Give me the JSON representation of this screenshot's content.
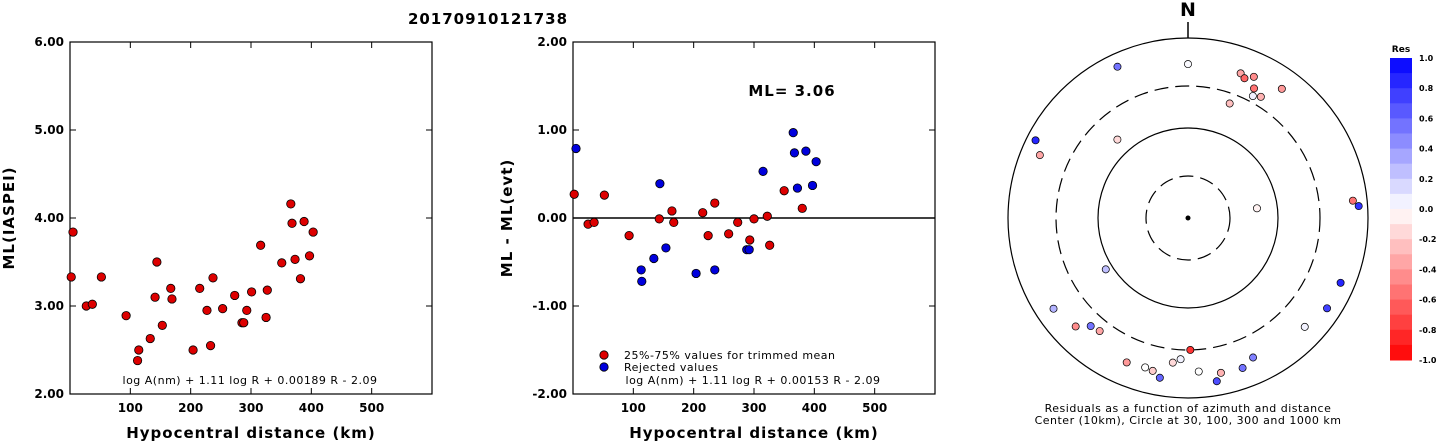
{
  "title": "20170910121738",
  "chart_data": [
    {
      "type": "scatter",
      "ylabel": "ML(IASPEI)",
      "xlabel": "Hypocentral distance (km)",
      "xlim": [
        0,
        600
      ],
      "ylim": [
        2.0,
        6.0
      ],
      "xticks": [
        "100",
        "200",
        "300",
        "400",
        "500"
      ],
      "yticks": [
        "2.00",
        "3.00",
        "4.00",
        "5.00",
        "6.00"
      ],
      "formula": "log A(nm) + 1.11 log R + 0.00189 R - 2.09",
      "marker_color": "#dd0000",
      "points": [
        [
          2,
          3.33
        ],
        [
          5,
          3.84
        ],
        [
          27,
          3.0
        ],
        [
          37,
          3.02
        ],
        [
          52,
          3.33
        ],
        [
          93,
          2.89
        ],
        [
          112,
          2.38
        ],
        [
          114,
          2.5
        ],
        [
          133,
          2.63
        ],
        [
          141,
          3.1
        ],
        [
          144,
          3.5
        ],
        [
          153,
          2.78
        ],
        [
          167,
          3.2
        ],
        [
          169,
          3.08
        ],
        [
          204,
          2.5
        ],
        [
          215,
          3.2
        ],
        [
          227,
          2.95
        ],
        [
          233,
          2.55
        ],
        [
          237,
          3.32
        ],
        [
          253,
          2.97
        ],
        [
          273,
          3.12
        ],
        [
          285,
          2.81
        ],
        [
          288,
          2.81
        ],
        [
          293,
          2.95
        ],
        [
          301,
          3.16
        ],
        [
          316,
          3.69
        ],
        [
          325,
          2.87
        ],
        [
          327,
          3.18
        ],
        [
          351,
          3.49
        ],
        [
          366,
          4.16
        ],
        [
          368,
          3.94
        ],
        [
          373,
          3.53
        ],
        [
          382,
          3.31
        ],
        [
          388,
          3.96
        ],
        [
          397,
          3.57
        ],
        [
          403,
          3.84
        ]
      ]
    },
    {
      "type": "scatter",
      "ylabel": "ML - ML(evt)",
      "xlabel": "Hypocentral distance (km)",
      "xlim": [
        0,
        600
      ],
      "ylim": [
        -2.0,
        2.0
      ],
      "xticks": [
        "100",
        "200",
        "300",
        "400",
        "500"
      ],
      "yticks": [
        "-2.00",
        "-1.00",
        "0.00",
        "1.00",
        "2.00"
      ],
      "annotation": "ML= 3.06",
      "formula": "log A(nm) + 1.11 log R + 0.00153 R - 2.09",
      "series": [
        {
          "name": "25%-75% values for trimmed mean",
          "color": "#dd0000",
          "points": [
            [
              2,
              0.27
            ],
            [
              25,
              -0.07
            ],
            [
              35,
              -0.05
            ],
            [
              52,
              0.26
            ],
            [
              93,
              -0.2
            ],
            [
              143,
              -0.01
            ],
            [
              164,
              0.08
            ],
            [
              167,
              -0.05
            ],
            [
              215,
              0.06
            ],
            [
              224,
              -0.2
            ],
            [
              235,
              0.17
            ],
            [
              258,
              -0.18
            ],
            [
              273,
              -0.05
            ],
            [
              293,
              -0.25
            ],
            [
              300,
              -0.01
            ],
            [
              322,
              0.02
            ],
            [
              326,
              -0.31
            ],
            [
              350,
              0.31
            ],
            [
              380,
              0.11
            ]
          ]
        },
        {
          "name": "Rejected values",
          "color": "#0000dd",
          "points": [
            [
              5,
              0.79
            ],
            [
              113,
              -0.59
            ],
            [
              114,
              -0.72
            ],
            [
              134,
              -0.46
            ],
            [
              144,
              0.39
            ],
            [
              154,
              -0.34
            ],
            [
              204,
              -0.63
            ],
            [
              235,
              -0.59
            ],
            [
              288,
              -0.36
            ],
            [
              292,
              -0.36
            ],
            [
              315,
              0.53
            ],
            [
              365,
              0.97
            ],
            [
              367,
              0.74
            ],
            [
              372,
              0.34
            ],
            [
              386,
              0.76
            ],
            [
              397,
              0.37
            ],
            [
              403,
              0.64
            ]
          ]
        }
      ]
    },
    {
      "type": "scatter",
      "subtype": "polar",
      "north_label": "N",
      "caption_line1": "Residuals as a function of azimuth and distance",
      "caption_line2": "Center (10km), Circle at 30, 100, 300 and 1000 km",
      "circles": [
        30,
        100,
        300,
        1000
      ],
      "colorbar": {
        "title": "Res",
        "ticks": [
          "1.0",
          "0.8",
          "0.6",
          "0.4",
          "0.2",
          "0.0",
          "-0.2",
          "-0.4",
          "-0.6",
          "-0.8",
          "-1.0"
        ],
        "range": [
          -1.0,
          1.0
        ]
      },
      "points": [
        {
          "azimuth": 0,
          "distance_km": 520,
          "residual": 0.02
        },
        {
          "azimuth": 20,
          "distance_km": 520,
          "residual": -0.35
        },
        {
          "azimuth": 22,
          "distance_km": 480,
          "residual": -0.6
        },
        {
          "azimuth": 25,
          "distance_km": 545,
          "residual": -0.45
        },
        {
          "azimuth": 27,
          "distance_km": 420,
          "residual": -0.55
        },
        {
          "azimuth": 28,
          "distance_km": 350,
          "residual": 0.05
        },
        {
          "azimuth": 31,
          "distance_km": 380,
          "residual": -0.3
        },
        {
          "azimuth": 36,
          "distance_km": 600,
          "residual": -0.4
        },
        {
          "azimuth": 20,
          "distance_km": 230,
          "residual": -0.25
        },
        {
          "azimuth": 82,
          "distance_km": 60,
          "residual": -0.05
        },
        {
          "azimuth": 84,
          "distance_km": 700,
          "residual": -0.55
        },
        {
          "azimuth": 86,
          "distance_km": 800,
          "residual": 0.8
        },
        {
          "azimuth": 113,
          "distance_km": 700,
          "residual": 0.85
        },
        {
          "azimuth": 123,
          "distance_km": 700,
          "residual": 0.75
        },
        {
          "azimuth": 133,
          "distance_km": 600,
          "residual": 0.05
        },
        {
          "azimuth": 155,
          "distance_km": 520,
          "residual": 0.5
        },
        {
          "azimuth": 160,
          "distance_km": 600,
          "residual": 0.55
        },
        {
          "azimuth": 168,
          "distance_km": 580,
          "residual": -0.3
        },
        {
          "azimuth": 170,
          "distance_km": 700,
          "residual": 0.7
        },
        {
          "azimuth": 176,
          "distance_km": 520,
          "residual": 0.0
        },
        {
          "azimuth": 179,
          "distance_km": 300,
          "residual": -0.8
        },
        {
          "azimuth": 183,
          "distance_km": 380,
          "residual": 0.05
        },
        {
          "azimuth": 186,
          "distance_km": 420,
          "residual": -0.15
        },
        {
          "azimuth": 190,
          "distance_km": 640,
          "residual": 0.6
        },
        {
          "azimuth": 193,
          "distance_km": 560,
          "residual": -0.2
        },
        {
          "azimuth": 196,
          "distance_km": 540,
          "residual": 0.0
        },
        {
          "azimuth": 203,
          "distance_km": 560,
          "residual": -0.4
        },
        {
          "azimuth": 218,
          "distance_km": 400,
          "residual": -0.35
        },
        {
          "azimuth": 222,
          "distance_km": 420,
          "residual": 0.55
        },
        {
          "azimuth": 226,
          "distance_km": 550,
          "residual": -0.45
        },
        {
          "azimuth": 236,
          "distance_km": 640,
          "residual": 0.3
        },
        {
          "azimuth": 238,
          "distance_km": 120,
          "residual": 0.25
        },
        {
          "azimuth": 293,
          "distance_km": 620,
          "residual": -0.35
        },
        {
          "azimuth": 297,
          "distance_km": 800,
          "residual": 0.85
        },
        {
          "azimuth": 318,
          "distance_km": 150,
          "residual": -0.15
        },
        {
          "azimuth": 335,
          "distance_km": 720,
          "residual": 0.55
        }
      ]
    }
  ]
}
